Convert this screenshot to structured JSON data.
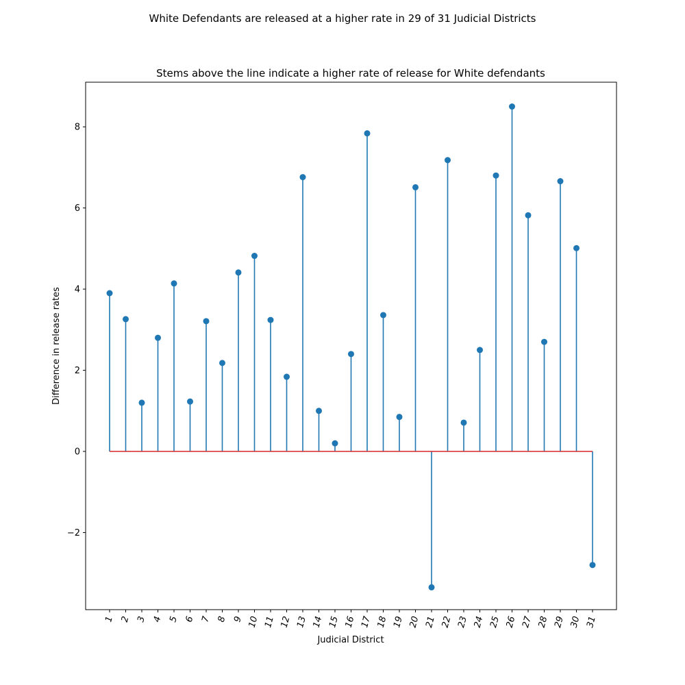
{
  "chart_data": {
    "type": "stem",
    "suptitle": "White Defendants are released at a higher rate in 29 of 31 Judicial Districts",
    "title": "Stems above the line indicate a higher rate of release for White defendants",
    "xlabel": "Judicial District",
    "ylabel": "Difference in release rates",
    "categories": [
      "1",
      "2",
      "3",
      "4",
      "5",
      "6",
      "7",
      "8",
      "9",
      "10",
      "11",
      "12",
      "13",
      "14",
      "15",
      "16",
      "17",
      "18",
      "19",
      "20",
      "21",
      "22",
      "23",
      "24",
      "25",
      "26",
      "27",
      "28",
      "29",
      "30",
      "31"
    ],
    "values": [
      3.9,
      3.26,
      1.2,
      2.8,
      4.14,
      1.23,
      3.21,
      2.18,
      4.41,
      4.82,
      3.24,
      1.84,
      6.76,
      1.0,
      0.2,
      2.4,
      7.84,
      3.36,
      0.85,
      6.51,
      -3.35,
      7.18,
      0.71,
      2.5,
      6.8,
      8.5,
      5.82,
      2.7,
      6.66,
      5.01,
      -2.8
    ],
    "yticks": [
      -2,
      0,
      2,
      4,
      6,
      8
    ],
    "ytick_labels": [
      "−2",
      "0",
      "2",
      "4",
      "6",
      "8"
    ],
    "ylim": [
      -3.9,
      9.1
    ],
    "baseline": 0,
    "colors": {
      "stem": "#1f77b4",
      "marker": "#1f77b4",
      "baseline": "#d62728"
    },
    "grid": false,
    "legend": "none"
  }
}
